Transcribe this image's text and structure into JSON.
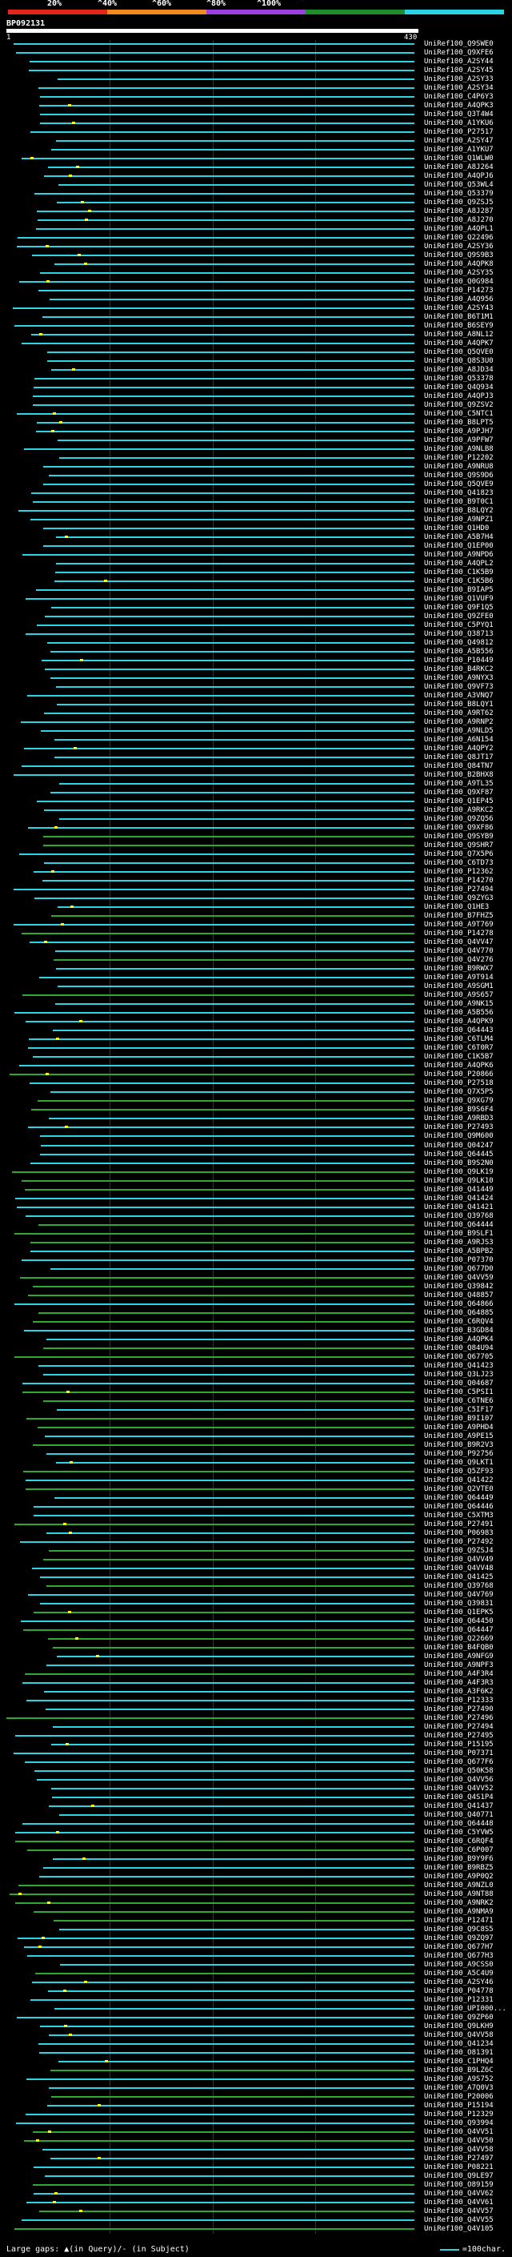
{
  "scale": {
    "labels": [
      "20%",
      "^40%",
      "^60%",
      "^80%",
      "^100%"
    ],
    "colors": [
      "#e3261c",
      "#f2891f",
      "#9b3fe0",
      "#1d8f2a",
      "#2bd4e4"
    ]
  },
  "query": {
    "id": "BP092131",
    "start_label": "1",
    "end_label": "430"
  },
  "colors": {
    "high": "#2bd4e4",
    "mid": "#2ea82e",
    "gap": "#ffff00"
  },
  "hits": [
    "UniRef100_Q9SWE0",
    "UniRef100_Q9XFE6",
    "UniRef100_A2SY44",
    "UniRef100_A2SY45",
    "UniRef100_A2SY33",
    "UniRef100_A2SY34",
    "UniRef100_C4P6Y3",
    "UniRef100_A4QPK3",
    "UniRef100_Q3T4W4",
    "UniRef100_A1YKU6",
    "UniRef100_P27517",
    "UniRef100_A2SY47",
    "UniRef100_A1YKU7",
    "UniRef100_Q1WLW0",
    "UniRef100_A8J264",
    "UniRef100_A4QPJ6",
    "UniRef100_Q53WL4",
    "UniRef100_Q53379",
    "UniRef100_Q9ZSJ5",
    "UniRef100_A8J287",
    "UniRef100_A8J270",
    "UniRef100_A4QPL1",
    "UniRef100_Q22496",
    "UniRef100_A2SY36",
    "UniRef100_Q9S9B3",
    "UniRef100_A4QPK8",
    "UniRef100_A2SY35",
    "UniRef100_Q0G984",
    "UniRef100_P14273",
    "UniRef100_A4Q956",
    "UniRef100_A2SY43",
    "UniRef100_B6T1M1",
    "UniRef100_B6SEY9",
    "UniRef100_A8NL12",
    "UniRef100_A4QPK7",
    "UniRef100_Q5QVE0",
    "UniRef100_Q8S3U0",
    "UniRef100_A8JD34",
    "UniRef100_Q53378",
    "UniRef100_Q4Q934",
    "UniRef100_A4QPJ3",
    "UniRef100_Q9ZSV2",
    "UniRef100_C5NTC1",
    "UniRef100_B8LPT5",
    "UniRef100_A9PJH7",
    "UniRef100_A9PFW7",
    "UniRef100_A9NLB8",
    "UniRef100_P12202",
    "UniRef100_A9NRU8",
    "UniRef100_Q9S9D6",
    "UniRef100_Q5QVE9",
    "UniRef100_Q41823",
    "UniRef100_B9T0C1",
    "UniRef100_B8LQY2",
    "UniRef100_A9NPZ1",
    "UniRef100_Q1HD0",
    "UniRef100_A5B7H4",
    "UniRef100_Q1EP00",
    "UniRef100_A9NPD6",
    "UniRef100_A4QPL2",
    "UniRef100_C1K5B9",
    "UniRef100_C1K5B6",
    "UniRef100_B9IAP5",
    "UniRef100_Q1VUF9",
    "UniRef100_Q9F1Q5",
    "UniRef100_Q9ZFE0",
    "UniRef100_C5PYQ1",
    "UniRef100_Q38713",
    "UniRef100_Q49812",
    "UniRef100_A5B556",
    "UniRef100_P10449",
    "UniRef100_B4RKC2",
    "UniRef100_A9NYX3",
    "UniRef100_Q9VF73",
    "UniRef100_A3VNQ7",
    "UniRef100_B8LQY1",
    "UniRef100_A9RT62",
    "UniRef100_A9RNP2",
    "UniRef100_A9NLD5",
    "UniRef100_A6N154",
    "UniRef100_A4QPY2",
    "UniRef100_Q8JT17",
    "UniRef100_Q84TN7",
    "UniRef100_B2BHX8",
    "UniRef100_A9TL35",
    "UniRef100_Q9XF87",
    "UniRef100_Q1EP45",
    "UniRef100_A9RKC2",
    "UniRef100_Q9ZQ56",
    "UniRef100_Q9XF86",
    "UniRef100_Q9SYB9",
    "UniRef100_Q9SHR7",
    "UniRef100_Q7X5P6",
    "UniRef100_C6TD73",
    "UniRef100_P12362",
    "UniRef100_P14270",
    "UniRef100_P27494",
    "UniRef100_Q9ZYG3",
    "UniRef100_Q1HE3",
    "UniRef100_B7FHZ5",
    "UniRef100_A9T769",
    "UniRef100_P14278",
    "UniRef100_Q4VV47",
    "UniRef100_Q4V770",
    "UniRef100_Q4V276",
    "UniRef100_B9RWX7",
    "UniRef100_A9T914",
    "UniRef100_A9SGM1",
    "UniRef100_A9S657",
    "UniRef100_A9NK15",
    "UniRef100_A5B556",
    "UniRef100_A4QPK9",
    "UniRef100_Q64443",
    "UniRef100_C6TLM4",
    "UniRef100_C6T0R7",
    "UniRef100_C1K5B7",
    "UniRef100_A4QPK6",
    "UniRef100_P20866",
    "UniRef100_P27518",
    "UniRef100_Q7X5P5",
    "UniRef100_Q9XG79",
    "UniRef100_B9S6F4",
    "UniRef100_A9RBD3",
    "UniRef100_P27493",
    "UniRef100_Q9M600",
    "UniRef100_Q04247",
    "UniRef100_Q64445",
    "UniRef100_B9S2N0",
    "UniRef100_Q9LK19",
    "UniRef100_Q9LK10",
    "UniRef100_Q41449",
    "UniRef100_Q41424",
    "UniRef100_Q41421",
    "UniRef100_Q39768",
    "UniRef100_Q64444",
    "UniRef100_B9SLF1",
    "UniRef100_A9RJS3",
    "UniRef100_A5BPB2",
    "UniRef100_P07370",
    "UniRef100_Q677D0",
    "UniRef100_Q4VV59",
    "UniRef100_Q39842",
    "UniRef100_Q48857",
    "UniRef100_Q64866",
    "UniRef100_Q64885",
    "UniRef100_C6RQV4",
    "UniRef100_B3GD84",
    "UniRef100_A4QPK4",
    "UniRef100_Q84U94",
    "UniRef100_Q67705",
    "UniRef100_Q41423",
    "UniRef100_Q3LJ23",
    "UniRef100_Q04687",
    "UniRef100_C5PSI1",
    "UniRef100_C6TNE6",
    "UniRef100_C5IF17",
    "UniRef100_B9I107",
    "UniRef100_A9PHD4",
    "UniRef100_A9PE15",
    "UniRef100_B9R2V3",
    "UniRef100_P92756",
    "UniRef100_Q9LKT1",
    "UniRef100_Q5ZF93",
    "UniRef100_Q41422",
    "UniRef100_Q2VTE0",
    "UniRef100_Q64449",
    "UniRef100_Q64446",
    "UniRef100_C5XTM3",
    "UniRef100_P27491",
    "UniRef100_P06983",
    "UniRef100_P27492",
    "UniRef100_Q9ZSJ4",
    "UniRef100_Q4VV49",
    "UniRef100_Q4VV48",
    "UniRef100_Q41425",
    "UniRef100_Q39768",
    "UniRef100_Q4V769",
    "UniRef100_Q39831",
    "UniRef100_Q1EPK5",
    "UniRef100_Q64450",
    "UniRef100_Q64447",
    "UniRef100_Q22669",
    "UniRef100_B4FQB0",
    "UniRef100_A9NFG9",
    "UniRef100_A9NPF3",
    "UniRef100_A4F3R4",
    "UniRef100_A4F3R3",
    "UniRef100_A3F6K2",
    "UniRef100_P12333",
    "UniRef100_P27490",
    "UniRef100_P27496",
    "UniRef100_P27494",
    "UniRef100_P27495",
    "UniRef100_P15195",
    "UniRef100_P07371",
    "UniRef100_Q677F6",
    "UniRef100_Q50K58",
    "UniRef100_Q4VV56",
    "UniRef100_Q4VV52",
    "UniRef100_Q4S1P4",
    "UniRef100_Q41437",
    "UniRef100_Q40771",
    "UniRef100_Q64448",
    "UniRef100_C5YVW5",
    "UniRef100_C6RQF4",
    "UniRef100_C6P007",
    "UniRef100_B9Y9F6",
    "UniRef100_B9RBZ5",
    "UniRef100_A9P0Q2",
    "UniRef100_A9NZL0",
    "UniRef100_A9NT88",
    "UniRef100_A9NRK2",
    "UniRef100_A9NMA9",
    "UniRef100_P12471",
    "UniRef100_Q9C8S5",
    "UniRef100_Q9ZQ97",
    "UniRef100_Q677H7",
    "UniRef100_Q677H3",
    "UniRef100_A9CSS0",
    "UniRef100_A5C4U9",
    "UniRef100_A2SY46",
    "UniRef100_P04778",
    "UniRef100_P12331",
    "UniRef100_UPI000...",
    "UniRef100_Q9ZP60",
    "UniRef100_Q9LKH9",
    "UniRef100_Q4VV58",
    "UniRef100_Q41234",
    "UniRef100_O81391",
    "UniRef100_C1PHQ4",
    "UniRef100_B9LZ6C",
    "UniRef100_A9S752",
    "UniRef100_A7Q0V3",
    "UniRef100_P20006",
    "UniRef100_P15194",
    "UniRef100_P12329",
    "UniRef100_Q93994",
    "UniRef100_Q4VV51",
    "UniRef100_Q4VV50",
    "UniRef100_Q4VV58",
    "UniRef100_P27497",
    "UniRef100_P08221",
    "UniRef100_Q9LE97",
    "UniRef100_O89159",
    "UniRef100_Q4VV62",
    "UniRef100_Q4VV61",
    "UniRef100_Q4VV57",
    "UniRef100_Q4VV55",
    "UniRef100_Q4V105"
  ],
  "legend": {
    "text": "Large gaps: ▲(in Query)/- (in Subject)",
    "scale_text": "=100char."
  }
}
